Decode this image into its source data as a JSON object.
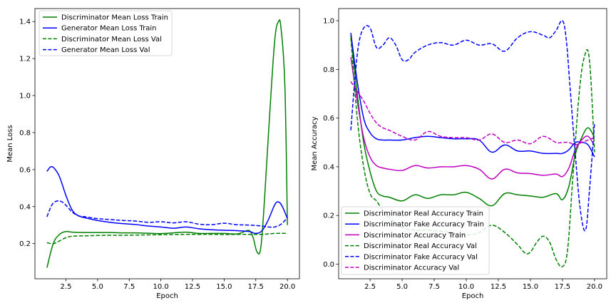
{
  "chart_data": [
    {
      "type": "line",
      "xlabel": "Epoch",
      "ylabel": "Mean Loss",
      "xlim": [
        0.05,
        20.95
      ],
      "ylim": [
        0.01,
        1.47
      ],
      "xticks": [
        2.5,
        5.0,
        7.5,
        10.0,
        12.5,
        15.0,
        17.5,
        20.0
      ],
      "xtick_labels": [
        "2.5",
        "5.0",
        "7.5",
        "10.0",
        "12.5",
        "15.0",
        "17.5",
        "20.0"
      ],
      "yticks": [
        0.2,
        0.4,
        0.6,
        0.8,
        1.0,
        1.2,
        1.4
      ],
      "ytick_labels": [
        "0.2",
        "0.4",
        "0.6",
        "0.8",
        "1.0",
        "1.2",
        "1.4"
      ],
      "legend_position": "top-left",
      "series": [
        {
          "name": "Discriminator Mean Loss Train",
          "color": "#008000",
          "dashed": false,
          "x": [
            1,
            1.5,
            2,
            2.5,
            3,
            4,
            5,
            6,
            7,
            8,
            9,
            10,
            11,
            12,
            13,
            14,
            15,
            16,
            16.5,
            17,
            17.3,
            17.6,
            17.9,
            18.2,
            18.6,
            19,
            19.3,
            19.5,
            19.8,
            20
          ],
          "y": [
            0.07,
            0.2,
            0.25,
            0.265,
            0.262,
            0.26,
            0.26,
            0.26,
            0.258,
            0.258,
            0.256,
            0.254,
            0.258,
            0.262,
            0.255,
            0.255,
            0.255,
            0.252,
            0.262,
            0.27,
            0.23,
            0.155,
            0.18,
            0.45,
            0.9,
            1.3,
            1.4,
            1.36,
            1.05,
            0.3
          ]
        },
        {
          "name": "Generator Mean Loss Train",
          "color": "#0000ff",
          "dashed": false,
          "x": [
            1,
            1.3,
            1.6,
            2,
            2.5,
            3,
            3.5,
            4,
            5,
            6,
            7,
            8,
            9,
            10,
            11,
            12,
            13,
            14,
            15,
            16,
            17,
            17.5,
            18,
            18.5,
            19,
            19.3,
            19.6,
            20
          ],
          "y": [
            0.59,
            0.615,
            0.605,
            0.56,
            0.46,
            0.38,
            0.35,
            0.34,
            0.325,
            0.315,
            0.308,
            0.303,
            0.295,
            0.29,
            0.283,
            0.29,
            0.28,
            0.275,
            0.272,
            0.27,
            0.265,
            0.255,
            0.27,
            0.33,
            0.41,
            0.425,
            0.4,
            0.335
          ]
        },
        {
          "name": "Discriminator Mean Loss Val",
          "color": "#008000",
          "dashed": true,
          "x": [
            1,
            1.5,
            2,
            2.5,
            3,
            4,
            5,
            6,
            7,
            8,
            9,
            10,
            11,
            12,
            13,
            14,
            15,
            16,
            17,
            18,
            19,
            20
          ],
          "y": [
            0.205,
            0.2,
            0.215,
            0.232,
            0.24,
            0.242,
            0.244,
            0.245,
            0.245,
            0.246,
            0.247,
            0.248,
            0.249,
            0.25,
            0.25,
            0.25,
            0.249,
            0.25,
            0.25,
            0.25,
            0.255,
            0.255
          ]
        },
        {
          "name": "Generator Mean Loss Val",
          "color": "#0000ff",
          "dashed": true,
          "x": [
            1,
            1.4,
            1.8,
            2.2,
            2.6,
            3,
            3.5,
            4,
            5,
            6,
            7,
            8,
            9,
            10,
            11,
            12,
            13,
            14,
            15,
            16,
            17,
            18,
            18.5,
            19,
            19.5,
            20
          ],
          "y": [
            0.345,
            0.41,
            0.43,
            0.425,
            0.4,
            0.37,
            0.35,
            0.345,
            0.335,
            0.33,
            0.325,
            0.322,
            0.315,
            0.318,
            0.312,
            0.318,
            0.305,
            0.302,
            0.31,
            0.302,
            0.3,
            0.295,
            0.29,
            0.29,
            0.305,
            0.34
          ]
        }
      ]
    },
    {
      "type": "line",
      "xlabel": "Epoch",
      "ylabel": "Mean Accuracy",
      "xlim": [
        0.05,
        20.95
      ],
      "ylim": [
        -0.06,
        1.05
      ],
      "xticks": [
        2.5,
        5.0,
        7.5,
        10.0,
        12.5,
        15.0,
        17.5,
        20.0
      ],
      "xtick_labels": [
        "2.5",
        "5.0",
        "7.5",
        "10.0",
        "12.5",
        "15.0",
        "17.5",
        "20.0"
      ],
      "yticks": [
        0.0,
        0.2,
        0.4,
        0.6,
        0.8,
        1.0
      ],
      "ytick_labels": [
        "0.0",
        "0.2",
        "0.4",
        "0.6",
        "0.8",
        "1.0"
      ],
      "legend_position": "bottom-left",
      "series": [
        {
          "name": "Discriminator Real Accuracy Train",
          "color": "#008000",
          "dashed": false,
          "x": [
            1,
            1.5,
            2,
            2.5,
            3,
            3.5,
            4,
            5,
            6,
            7,
            8,
            9,
            10,
            11,
            12,
            13,
            14,
            15,
            16,
            17,
            17.5,
            18,
            18.5,
            19,
            19.5,
            20
          ],
          "y": [
            0.94,
            0.7,
            0.5,
            0.38,
            0.3,
            0.28,
            0.275,
            0.26,
            0.285,
            0.27,
            0.285,
            0.285,
            0.295,
            0.27,
            0.24,
            0.29,
            0.285,
            0.28,
            0.275,
            0.29,
            0.265,
            0.32,
            0.45,
            0.52,
            0.56,
            0.52
          ]
        },
        {
          "name": "Discriminator Fake Accuracy Train",
          "color": "#0000ff",
          "dashed": false,
          "x": [
            1,
            1.5,
            2,
            2.5,
            3,
            3.5,
            4,
            5,
            6,
            7,
            8,
            9,
            10,
            11,
            12,
            13,
            14,
            15,
            16,
            17,
            17.5,
            18,
            18.5,
            19,
            19.5,
            20
          ],
          "y": [
            0.95,
            0.75,
            0.6,
            0.54,
            0.515,
            0.51,
            0.51,
            0.51,
            0.52,
            0.525,
            0.52,
            0.515,
            0.515,
            0.51,
            0.46,
            0.49,
            0.465,
            0.465,
            0.455,
            0.455,
            0.455,
            0.47,
            0.5,
            0.5,
            0.49,
            0.44
          ]
        },
        {
          "name": "Discriminator Accuracy Train",
          "color": "#bf00bf",
          "dashed": false,
          "x": [
            1,
            1.5,
            2,
            2.5,
            3,
            3.5,
            4,
            5,
            6,
            7,
            8,
            9,
            10,
            11,
            12,
            13,
            14,
            15,
            16,
            17,
            17.5,
            18,
            18.5,
            19,
            19.5,
            20
          ],
          "y": [
            0.85,
            0.67,
            0.52,
            0.44,
            0.405,
            0.395,
            0.39,
            0.385,
            0.405,
            0.395,
            0.4,
            0.4,
            0.405,
            0.39,
            0.35,
            0.39,
            0.375,
            0.372,
            0.365,
            0.37,
            0.36,
            0.395,
            0.47,
            0.51,
            0.525,
            0.485
          ]
        },
        {
          "name": "Discriminator Real Accuracy Val",
          "color": "#008000",
          "dashed": true,
          "x": [
            1,
            1.5,
            2,
            2.5,
            3,
            3.5,
            4,
            5,
            6,
            7,
            8,
            9,
            10,
            11,
            12,
            13,
            14,
            14.6,
            15,
            15.5,
            16,
            16.5,
            17,
            17.5,
            17.9,
            18.3,
            18.8,
            19.2,
            19.6,
            20
          ],
          "y": [
            0.93,
            0.6,
            0.4,
            0.29,
            0.26,
            0.22,
            0.19,
            0.15,
            0.14,
            0.14,
            0.135,
            0.13,
            0.12,
            0.13,
            0.16,
            0.13,
            0.08,
            0.045,
            0.05,
            0.09,
            0.115,
            0.09,
            0.02,
            -0.01,
            0.06,
            0.35,
            0.7,
            0.85,
            0.84,
            0.46
          ]
        },
        {
          "name": "Discriminator Fake Accuracy Val",
          "color": "#0000ff",
          "dashed": true,
          "x": [
            1,
            1.3,
            1.6,
            2,
            2.5,
            3,
            3.5,
            4,
            4.5,
            5,
            5.5,
            6,
            7,
            8,
            9,
            10,
            11,
            12,
            13,
            14,
            15,
            16,
            16.5,
            17,
            17.5,
            17.8,
            18.1,
            18.5,
            18.9,
            19.3,
            19.6,
            20
          ],
          "y": [
            0.55,
            0.75,
            0.9,
            0.97,
            0.97,
            0.89,
            0.9,
            0.93,
            0.9,
            0.84,
            0.84,
            0.87,
            0.9,
            0.91,
            0.9,
            0.92,
            0.9,
            0.905,
            0.875,
            0.93,
            0.955,
            0.94,
            0.93,
            0.96,
            1.0,
            0.92,
            0.72,
            0.45,
            0.22,
            0.14,
            0.3,
            0.58
          ]
        },
        {
          "name": "Discriminator Accuracy Val",
          "color": "#bf00bf",
          "dashed": true,
          "x": [
            1,
            1.5,
            2,
            2.5,
            3,
            3.5,
            4,
            5,
            6,
            7,
            8,
            9,
            10,
            11,
            12,
            13,
            14,
            15,
            16,
            17,
            17.5,
            18,
            18.5,
            19,
            19.5,
            20
          ],
          "y": [
            0.75,
            0.71,
            0.67,
            0.62,
            0.58,
            0.56,
            0.55,
            0.525,
            0.51,
            0.545,
            0.525,
            0.52,
            0.52,
            0.51,
            0.535,
            0.5,
            0.51,
            0.495,
            0.525,
            0.5,
            0.5,
            0.5,
            0.49,
            0.5,
            0.51,
            0.52
          ]
        }
      ]
    }
  ]
}
